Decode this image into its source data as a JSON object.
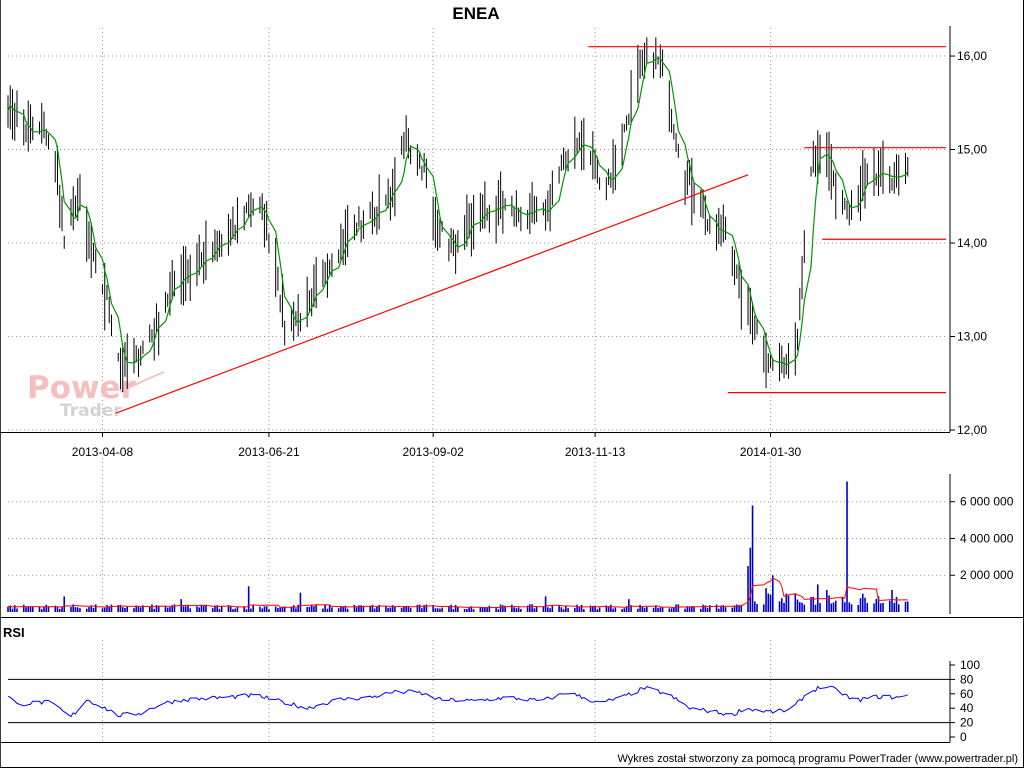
{
  "title": "ENEA",
  "footer": "Wykres został stworzony za pomocą programu PowerTrader (www.powertrader.pl)",
  "watermark": {
    "line1": "Power",
    "line2": "Trader"
  },
  "colors": {
    "candle": "#000000",
    "moving_average": "#009900",
    "trendline": "#ff0000",
    "volume_bar": "#0000cc",
    "volume_ma": "#ff0000",
    "rsi": "#0000ff",
    "grid": "#9a9a9a",
    "watermark": "#f5b4b4"
  },
  "chart_data": [
    {
      "type": "candlestick",
      "name": "price",
      "title": "ENEA",
      "x_axis": {
        "type": "date",
        "range": [
          "2013-02-25",
          "2014-04-18"
        ],
        "ticks": [
          "2013-04-08",
          "2013-06-21",
          "2013-09-02",
          "2013-11-13",
          "2014-01-30"
        ]
      },
      "y_axis": {
        "range": [
          12.0,
          16.3
        ],
        "ticks": [
          12.0,
          13.0,
          14.0,
          15.0,
          16.0
        ],
        "tick_labels": [
          "12,00",
          "13,00",
          "14,00",
          "15,00",
          "16,00"
        ],
        "position": "right"
      },
      "grid": true,
      "close_path": [
        [
          "2013-02-25",
          15.5
        ],
        [
          "2013-03-06",
          15.15
        ],
        [
          "2013-03-14",
          15.2
        ],
        [
          "2013-03-19",
          14.7
        ],
        [
          "2013-03-22",
          14.0
        ],
        [
          "2013-03-28",
          14.5
        ],
        [
          "2013-04-04",
          13.8
        ],
        [
          "2013-04-10",
          13.4
        ],
        [
          "2013-04-16",
          12.7
        ],
        [
          "2013-04-22",
          12.7
        ],
        [
          "2013-04-30",
          13.05
        ],
        [
          "2013-05-10",
          13.6
        ],
        [
          "2013-05-22",
          13.8
        ],
        [
          "2013-06-05",
          14.1
        ],
        [
          "2013-06-12",
          14.4
        ],
        [
          "2013-06-18",
          14.35
        ],
        [
          "2013-06-24",
          13.8
        ],
        [
          "2013-06-28",
          13.1
        ],
        [
          "2013-07-09",
          13.3
        ],
        [
          "2013-07-18",
          13.8
        ],
        [
          "2013-07-26",
          14.1
        ],
        [
          "2013-08-06",
          14.3
        ],
        [
          "2013-08-14",
          14.5
        ],
        [
          "2013-08-21",
          15.1
        ],
        [
          "2013-08-29",
          14.8
        ],
        [
          "2013-09-03",
          14.2
        ],
        [
          "2013-09-12",
          13.9
        ],
        [
          "2013-09-22",
          14.3
        ],
        [
          "2013-10-02",
          14.4
        ],
        [
          "2013-10-12",
          14.3
        ],
        [
          "2013-10-22",
          14.3
        ],
        [
          "2013-10-29",
          14.8
        ],
        [
          "2013-11-05",
          15.1
        ],
        [
          "2013-11-12",
          14.9
        ],
        [
          "2013-11-17",
          14.6
        ],
        [
          "2013-11-22",
          14.8
        ],
        [
          "2013-11-30",
          15.6
        ],
        [
          "2013-12-07",
          16.05
        ],
        [
          "2013-12-12",
          15.9
        ],
        [
          "2013-12-17",
          15.4
        ],
        [
          "2013-12-22",
          14.8
        ],
        [
          "2013-12-31",
          14.4
        ],
        [
          "2014-01-04",
          14.0
        ],
        [
          "2014-01-11",
          14.2
        ],
        [
          "2014-01-16",
          13.5
        ],
        [
          "2014-01-22",
          13.2
        ],
        [
          "2014-01-30",
          12.7
        ],
        [
          "2014-02-06",
          12.7
        ],
        [
          "2014-02-11",
          13.1
        ],
        [
          "2014-02-14",
          14.0
        ],
        [
          "2014-02-18",
          14.9
        ],
        [
          "2014-02-24",
          14.9
        ],
        [
          "2014-02-28",
          14.6
        ],
        [
          "2014-03-06",
          14.3
        ],
        [
          "2014-03-12",
          14.6
        ],
        [
          "2014-03-18",
          14.7
        ],
        [
          "2014-03-25",
          14.7
        ],
        [
          "2014-04-01",
          14.75
        ]
      ],
      "annotations": [
        {
          "type": "trendline",
          "from": [
            "2013-04-14",
            12.18
          ],
          "to": [
            "2014-01-20",
            14.73
          ]
        },
        {
          "type": "horizontal",
          "from": "2013-11-10",
          "to": "2014-04-18",
          "value": 16.1
        },
        {
          "type": "horizontal",
          "from": "2014-02-14",
          "to": "2014-04-18",
          "value": 15.02
        },
        {
          "type": "horizontal",
          "from": "2014-02-22",
          "to": "2014-04-18",
          "value": 14.04
        },
        {
          "type": "horizontal",
          "from": "2014-01-11",
          "to": "2014-04-18",
          "value": 12.4
        }
      ]
    },
    {
      "type": "bar",
      "name": "volume",
      "y_axis": {
        "range": [
          0,
          7400000
        ],
        "ticks": [
          2000000,
          4000000,
          6000000
        ],
        "tick_labels": [
          "2 000 000",
          "4 000 000",
          "6 000 000"
        ],
        "position": "right"
      },
      "baseline": 300000,
      "spikes": [
        [
          "2013-03-22",
          850000
        ],
        [
          "2013-05-13",
          700000
        ],
        [
          "2013-06-12",
          1400000
        ],
        [
          "2013-07-05",
          1050000
        ],
        [
          "2013-10-22",
          850000
        ],
        [
          "2013-11-28",
          700000
        ],
        [
          "2014-01-20",
          2500000
        ],
        [
          "2014-01-21",
          3500000
        ],
        [
          "2014-01-22",
          5800000
        ],
        [
          "2014-01-25",
          2800000
        ],
        [
          "2014-01-28",
          1300000
        ],
        [
          "2014-01-31",
          2000000
        ],
        [
          "2014-02-20",
          1500000
        ],
        [
          "2014-02-24",
          1200000
        ],
        [
          "2014-03-05",
          7100000
        ],
        [
          "2014-03-12",
          1000000
        ],
        [
          "2014-03-25",
          1200000
        ]
      ]
    },
    {
      "type": "line",
      "name": "RSI",
      "title": "RSI",
      "y_axis": {
        "range": [
          0,
          100
        ],
        "ticks": [
          0,
          20,
          40,
          60,
          80,
          100
        ],
        "reference_lines": [
          20,
          80
        ],
        "position": "right"
      },
      "values": [
        [
          "2013-02-25",
          58
        ],
        [
          "2013-03-01",
          45
        ],
        [
          "2013-03-10",
          48
        ],
        [
          "2013-03-15",
          48
        ],
        [
          "2013-03-20",
          40
        ],
        [
          "2013-03-24",
          26
        ],
        [
          "2013-03-27",
          34
        ],
        [
          "2013-04-01",
          52
        ],
        [
          "2013-04-08",
          42
        ],
        [
          "2013-04-15",
          30
        ],
        [
          "2013-04-25",
          33
        ],
        [
          "2013-05-05",
          47
        ],
        [
          "2013-05-15",
          52
        ],
        [
          "2013-06-01",
          55
        ],
        [
          "2013-06-15",
          58
        ],
        [
          "2013-06-28",
          48
        ],
        [
          "2013-07-08",
          40
        ],
        [
          "2013-07-22",
          52
        ],
        [
          "2013-08-05",
          55
        ],
        [
          "2013-08-15",
          62
        ],
        [
          "2013-08-25",
          63
        ],
        [
          "2013-09-05",
          52
        ],
        [
          "2013-09-20",
          50
        ],
        [
          "2013-10-05",
          55
        ],
        [
          "2013-10-20",
          50
        ],
        [
          "2013-11-01",
          62
        ],
        [
          "2013-11-15",
          47
        ],
        [
          "2013-11-25",
          55
        ],
        [
          "2013-12-05",
          68
        ],
        [
          "2013-12-15",
          60
        ],
        [
          "2013-12-25",
          40
        ],
        [
          "2014-01-05",
          35
        ],
        [
          "2014-01-13",
          30
        ],
        [
          "2014-01-18",
          40
        ],
        [
          "2014-01-30",
          35
        ],
        [
          "2014-02-08",
          37
        ],
        [
          "2014-02-15",
          60
        ],
        [
          "2014-02-22",
          71
        ],
        [
          "2014-03-01",
          65
        ],
        [
          "2014-03-08",
          50
        ],
        [
          "2014-03-18",
          56
        ],
        [
          "2014-03-28",
          55
        ],
        [
          "2014-04-01",
          57
        ]
      ]
    }
  ]
}
